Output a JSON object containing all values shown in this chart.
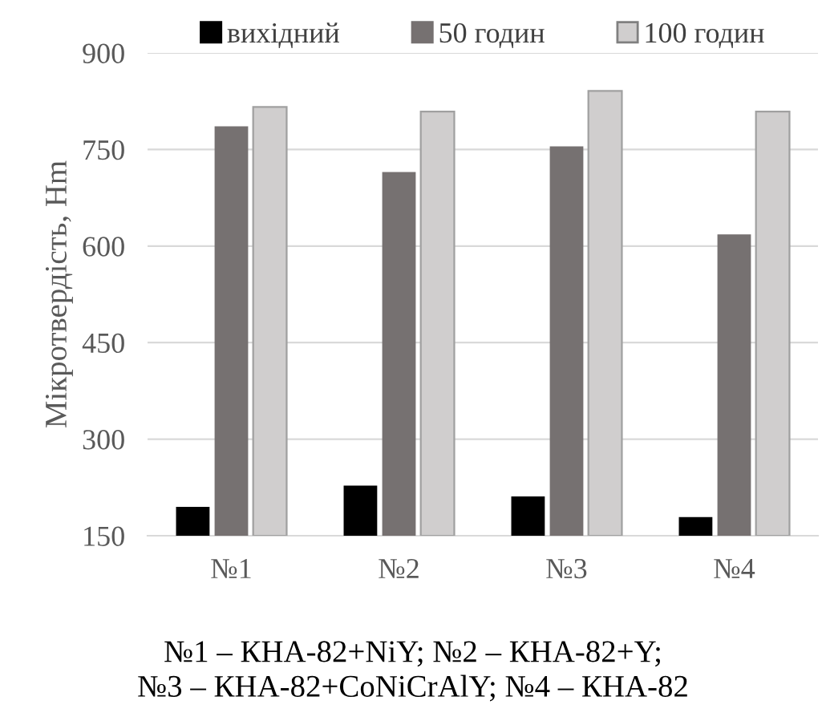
{
  "chart_data": {
    "type": "bar",
    "ylabel": "Мікротвердість, Нm",
    "categories": [
      "№1",
      "№2",
      "№3",
      "№4"
    ],
    "series": [
      {
        "name": "вихідний",
        "color": "#000000",
        "values": [
          195,
          228,
          211,
          179
        ]
      },
      {
        "name": "50 годин",
        "color": "#767171",
        "values": [
          786,
          715,
          755,
          618
        ]
      },
      {
        "name": "100 годин",
        "color": "#d0cece",
        "values": [
          816,
          809,
          841,
          809
        ]
      }
    ],
    "ylim": [
      150,
      900
    ],
    "yticks": [
      150,
      300,
      450,
      600,
      750,
      900
    ],
    "grid": "y",
    "legend": "top",
    "annotations": [
      "№1 – КНА-82+NiY; №2 – КНА-82+Y;\n№3 – КНА-82+CoNiCrAlY; №4 – КНА-82"
    ]
  }
}
